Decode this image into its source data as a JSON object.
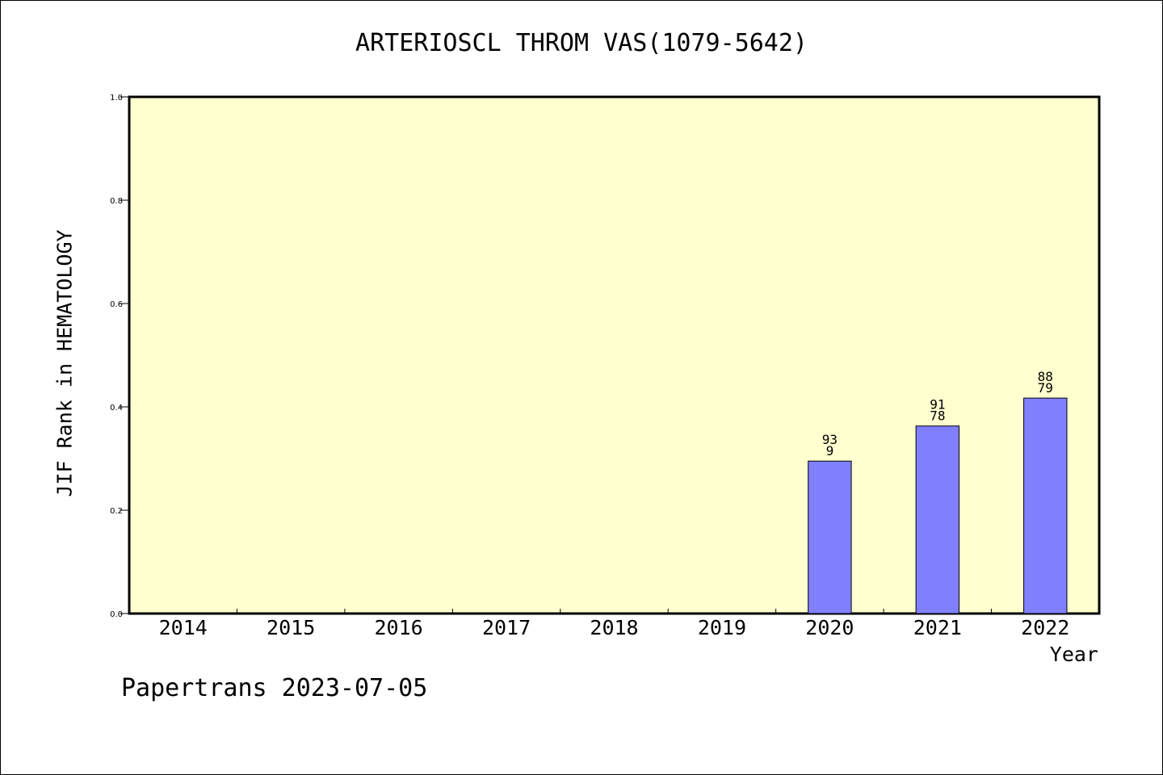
{
  "title": "ARTERIOSCL THROM VAS(1079-5642)",
  "footer": "Papertrans 2023-07-05",
  "chart_data": {
    "type": "bar",
    "title": "ARTERIOSCL THROM VAS(1079-5642)",
    "xlabel": "Year",
    "ylabel": "JIF Rank in HEMATOLOGY",
    "categories": [
      "2014",
      "2015",
      "2016",
      "2017",
      "2018",
      "2019",
      "2020",
      "2021",
      "2022"
    ],
    "values": [
      null,
      null,
      null,
      null,
      null,
      null,
      0.295,
      0.363,
      0.417
    ],
    "bar_labels": [
      null,
      null,
      null,
      null,
      null,
      null,
      [
        "93",
        "9"
      ],
      [
        "91",
        "78"
      ],
      [
        "88",
        "79"
      ]
    ],
    "ylim": [
      0,
      1.0
    ],
    "yticks": [
      "0.0",
      "0.2",
      "0.4",
      "0.6",
      "0.8",
      "1.0"
    ],
    "grid": false,
    "colors": {
      "plot_background": "#ffffd0",
      "bar_fill": "#8080ff",
      "bar_stroke": "#000000"
    }
  }
}
